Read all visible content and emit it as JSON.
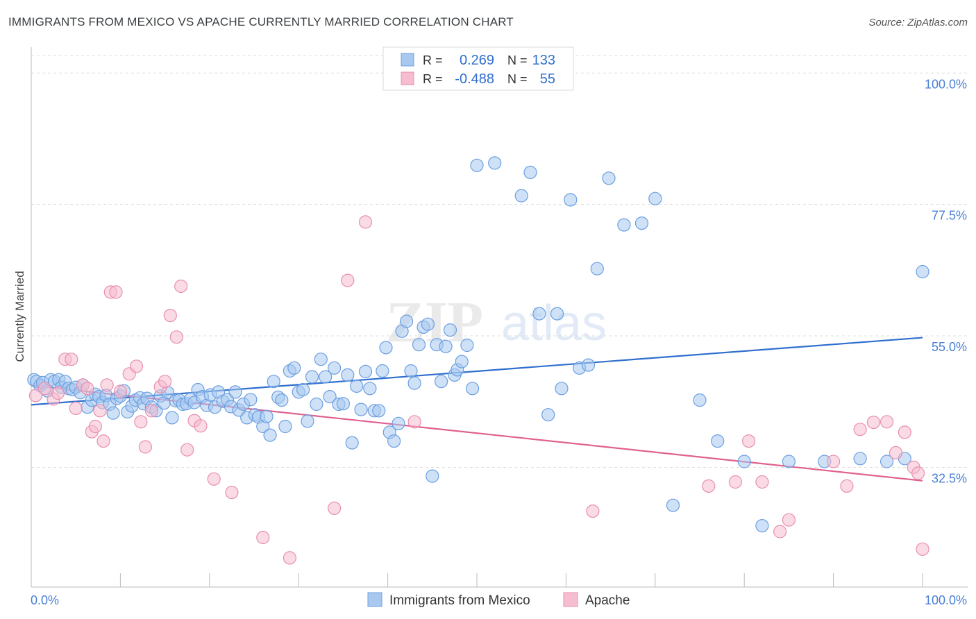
{
  "title": "IMMIGRANTS FROM MEXICO VS APACHE CURRENTLY MARRIED CORRELATION CHART",
  "source": "Source: ZipAtlas.com",
  "watermark": {
    "zip": "ZIP",
    "atlas": "atlas"
  },
  "colors": {
    "blue_fill": "#a8c8f0",
    "blue_stroke": "#6b9fe0",
    "blue_line": "#2f6fcf",
    "pink_fill": "#f6bccf",
    "pink_stroke": "#e88fae",
    "pink_line": "#e0608f",
    "tick_label": "#4a7fd6",
    "grid": "#dddddd"
  },
  "legend": {
    "rows": [
      {
        "r_label": "R =",
        "r_value": "0.269",
        "n_label": "N =",
        "n_value": "133"
      },
      {
        "r_label": "R =",
        "r_value": "-0.488",
        "n_label": "N =",
        "n_value": "55"
      }
    ]
  },
  "chart_data": {
    "type": "scatter",
    "title": "IMMIGRANTS FROM MEXICO VS APACHE CURRENTLY MARRIED CORRELATION CHART",
    "xlabel": "",
    "ylabel": "Currently Married",
    "xlim": [
      0,
      100
    ],
    "ylim": [
      12,
      103
    ],
    "x_tick_labels": [
      "0.0%",
      "100.0%"
    ],
    "y_ticks": [
      32.5,
      55.0,
      77.5,
      100.0
    ],
    "y_tick_labels": [
      "32.5%",
      "55.0%",
      "77.5%",
      "100.0%"
    ],
    "grid": true,
    "legend_position": "bottom-center",
    "series": [
      {
        "name": "Immigrants from Mexico",
        "color": "#a8c8f0",
        "trend": {
          "x": [
            0,
            100
          ],
          "y": [
            43.2,
            54.7
          ]
        },
        "points": [
          [
            0.3,
            47.5
          ],
          [
            0.6,
            47.2
          ],
          [
            1.0,
            46.5
          ],
          [
            1.3,
            47.0
          ],
          [
            1.8,
            45.6
          ],
          [
            2.2,
            47.5
          ],
          [
            2.6,
            47.2
          ],
          [
            3.1,
            47.5
          ],
          [
            3.4,
            46.2
          ],
          [
            3.8,
            47.2
          ],
          [
            4.2,
            46.0
          ],
          [
            4.6,
            45.8
          ],
          [
            5.0,
            46.2
          ],
          [
            5.5,
            45.3
          ],
          [
            5.8,
            46.6
          ],
          [
            6.3,
            42.8
          ],
          [
            6.8,
            44.0
          ],
          [
            7.2,
            45.0
          ],
          [
            7.6,
            44.6
          ],
          [
            8.0,
            43.6
          ],
          [
            8.4,
            44.8
          ],
          [
            8.8,
            43.3
          ],
          [
            9.2,
            41.8
          ],
          [
            9.6,
            44.3
          ],
          [
            10.0,
            44.7
          ],
          [
            10.4,
            45.6
          ],
          [
            10.8,
            42.0
          ],
          [
            11.3,
            43.0
          ],
          [
            11.7,
            44.0
          ],
          [
            12.2,
            44.4
          ],
          [
            12.6,
            43.4
          ],
          [
            13.0,
            44.3
          ],
          [
            13.5,
            42.8
          ],
          [
            14.0,
            42.2
          ],
          [
            14.5,
            44.7
          ],
          [
            14.9,
            43.5
          ],
          [
            15.3,
            45.3
          ],
          [
            15.8,
            41.0
          ],
          [
            16.2,
            43.9
          ],
          [
            16.6,
            44.0
          ],
          [
            17.0,
            43.3
          ],
          [
            17.4,
            43.4
          ],
          [
            17.9,
            44.2
          ],
          [
            18.3,
            43.6
          ],
          [
            18.7,
            45.8
          ],
          [
            19.2,
            44.6
          ],
          [
            19.7,
            43.1
          ],
          [
            20.1,
            44.9
          ],
          [
            20.6,
            42.8
          ],
          [
            21.0,
            45.4
          ],
          [
            21.5,
            43.8
          ],
          [
            22.0,
            44.1
          ],
          [
            22.4,
            42.9
          ],
          [
            22.9,
            45.4
          ],
          [
            23.3,
            42.3
          ],
          [
            23.8,
            43.3
          ],
          [
            24.2,
            41.0
          ],
          [
            24.6,
            44.1
          ],
          [
            25.1,
            41.5
          ],
          [
            25.5,
            41.1
          ],
          [
            26.0,
            39.5
          ],
          [
            26.4,
            41.2
          ],
          [
            26.8,
            38.0
          ],
          [
            27.2,
            47.2
          ],
          [
            27.7,
            44.5
          ],
          [
            28.1,
            44.0
          ],
          [
            28.5,
            39.5
          ],
          [
            29.0,
            49.0
          ],
          [
            29.5,
            49.5
          ],
          [
            30.0,
            45.4
          ],
          [
            30.5,
            45.8
          ],
          [
            31.0,
            40.4
          ],
          [
            31.5,
            48.0
          ],
          [
            32.0,
            43.3
          ],
          [
            32.5,
            51.0
          ],
          [
            33.0,
            48.0
          ],
          [
            33.5,
            44.6
          ],
          [
            34.0,
            49.5
          ],
          [
            34.5,
            43.3
          ],
          [
            35.0,
            43.4
          ],
          [
            35.5,
            48.3
          ],
          [
            36.0,
            36.7
          ],
          [
            36.5,
            46.4
          ],
          [
            37.0,
            42.4
          ],
          [
            37.5,
            48.9
          ],
          [
            38.0,
            46.0
          ],
          [
            38.5,
            42.2
          ],
          [
            39.0,
            42.2
          ],
          [
            39.4,
            49.0
          ],
          [
            39.8,
            53.0
          ],
          [
            40.2,
            38.5
          ],
          [
            40.7,
            37.0
          ],
          [
            41.2,
            40.0
          ],
          [
            41.6,
            55.8
          ],
          [
            42.1,
            57.5
          ],
          [
            42.6,
            49.0
          ],
          [
            43.0,
            46.9
          ],
          [
            43.5,
            53.5
          ],
          [
            44.0,
            56.5
          ],
          [
            44.5,
            57.0
          ],
          [
            45.0,
            31.0
          ],
          [
            45.5,
            53.5
          ],
          [
            46.0,
            47.2
          ],
          [
            46.5,
            53.2
          ],
          [
            47.0,
            56.0
          ],
          [
            47.5,
            48.3
          ],
          [
            47.8,
            49.2
          ],
          [
            48.3,
            50.6
          ],
          [
            48.9,
            53.4
          ],
          [
            49.5,
            46.0
          ],
          [
            50.0,
            84.2
          ],
          [
            52.0,
            84.6
          ],
          [
            55.0,
            79.0
          ],
          [
            56.0,
            83.0
          ],
          [
            57.0,
            58.8
          ],
          [
            58.0,
            41.5
          ],
          [
            59.0,
            58.8
          ],
          [
            59.5,
            46.0
          ],
          [
            60.5,
            78.3
          ],
          [
            61.5,
            49.5
          ],
          [
            62.5,
            50.0
          ],
          [
            63.5,
            66.5
          ],
          [
            64.8,
            82.0
          ],
          [
            66.5,
            74.0
          ],
          [
            68.5,
            74.3
          ],
          [
            70.0,
            78.5
          ],
          [
            72.0,
            26.0
          ],
          [
            75.0,
            44.0
          ],
          [
            77.0,
            37.0
          ],
          [
            80.0,
            33.5
          ],
          [
            82.0,
            22.5
          ],
          [
            85.0,
            33.5
          ],
          [
            89.0,
            33.5
          ],
          [
            93.0,
            34.0
          ],
          [
            96.0,
            33.5
          ],
          [
            98.0,
            34.0
          ],
          [
            100.0,
            66.0
          ]
        ]
      },
      {
        "name": "Apache",
        "color": "#f6bccf",
        "trend": {
          "x": [
            0,
            100
          ],
          "y": [
            46.5,
            30.2
          ]
        },
        "points": [
          [
            0.5,
            44.8
          ],
          [
            1.5,
            46.0
          ],
          [
            2.5,
            44.2
          ],
          [
            3.0,
            45.2
          ],
          [
            3.8,
            51.0
          ],
          [
            4.5,
            51.0
          ],
          [
            5.0,
            42.6
          ],
          [
            5.8,
            46.6
          ],
          [
            6.3,
            46.0
          ],
          [
            6.8,
            38.6
          ],
          [
            7.2,
            39.5
          ],
          [
            7.7,
            42.2
          ],
          [
            8.1,
            37.0
          ],
          [
            8.5,
            46.6
          ],
          [
            8.9,
            62.5
          ],
          [
            9.5,
            62.5
          ],
          [
            10.0,
            45.5
          ],
          [
            11.0,
            48.5
          ],
          [
            11.8,
            49.8
          ],
          [
            12.3,
            40.3
          ],
          [
            12.8,
            36.0
          ],
          [
            13.5,
            42.2
          ],
          [
            14.5,
            46.3
          ],
          [
            15.0,
            47.2
          ],
          [
            15.6,
            58.5
          ],
          [
            16.3,
            54.8
          ],
          [
            16.8,
            63.5
          ],
          [
            17.5,
            35.5
          ],
          [
            18.3,
            40.5
          ],
          [
            19.0,
            39.6
          ],
          [
            20.5,
            30.5
          ],
          [
            22.5,
            28.2
          ],
          [
            26.0,
            20.5
          ],
          [
            29.0,
            17.0
          ],
          [
            34.0,
            25.5
          ],
          [
            35.5,
            64.5
          ],
          [
            37.5,
            74.5
          ],
          [
            43.0,
            40.3
          ],
          [
            63.0,
            25.0
          ],
          [
            76.0,
            29.3
          ],
          [
            79.0,
            30.0
          ],
          [
            80.5,
            37.0
          ],
          [
            82.0,
            30.0
          ],
          [
            84.0,
            21.5
          ],
          [
            85.0,
            23.5
          ],
          [
            90.0,
            33.5
          ],
          [
            91.5,
            29.3
          ],
          [
            93.0,
            39.0
          ],
          [
            94.5,
            40.2
          ],
          [
            96.0,
            40.3
          ],
          [
            97.0,
            35.0
          ],
          [
            98.0,
            38.5
          ],
          [
            99.0,
            32.5
          ],
          [
            99.5,
            31.5
          ],
          [
            100.0,
            18.5
          ]
        ]
      }
    ]
  }
}
